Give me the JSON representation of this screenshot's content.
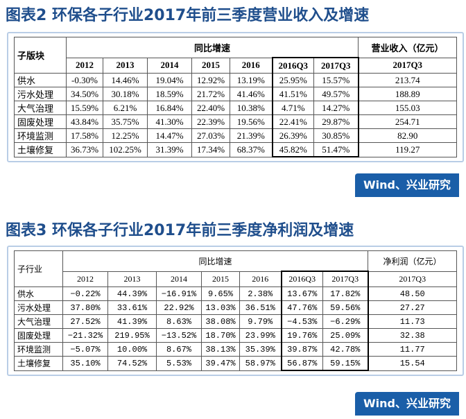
{
  "figures": [
    {
      "title": "图表2 环保各子行业2017年前三季度营业收入及增速",
      "header": {
        "segment": "子版块",
        "growth": "同比增速",
        "metric": "营业收入（亿元）"
      },
      "columns": [
        "2012",
        "2013",
        "2014",
        "2015",
        "2016",
        "2016Q3",
        "2017Q3",
        "2017Q3"
      ],
      "rows": [
        [
          "供水",
          "-0.30%",
          "14.46%",
          "19.04%",
          "12.92%",
          "13.19%",
          "25.95%",
          "15.57%",
          "213.74"
        ],
        [
          "污水处理",
          "34.50%",
          "30.18%",
          "18.59%",
          "21.72%",
          "41.46%",
          "41.51%",
          "49.57%",
          "188.89"
        ],
        [
          "大气治理",
          "15.59%",
          "6.21%",
          "16.84%",
          "22.40%",
          "10.38%",
          "4.71%",
          "14.27%",
          "155.03"
        ],
        [
          "固废处理",
          "43.84%",
          "35.75%",
          "41.30%",
          "22.39%",
          "19.56%",
          "22.41%",
          "29.87%",
          "254.71"
        ],
        [
          "环境监测",
          "17.58%",
          "12.25%",
          "14.47%",
          "27.03%",
          "21.39%",
          "26.39%",
          "30.85%",
          "82.90"
        ],
        [
          "土壤修复",
          "36.73%",
          "102.25%",
          "31.39%",
          "17.34%",
          "68.37%",
          "45.82%",
          "51.47%",
          "119.27"
        ]
      ],
      "source": "Wind、兴业研究"
    },
    {
      "title": "图表3 环保各子行业2017年前三季度净利润及增速",
      "header": {
        "segment": "子行业",
        "growth": "同比增速",
        "metric": "净利润（亿元）"
      },
      "columns": [
        "2012",
        "2013",
        "2014",
        "2015",
        "2016",
        "2016Q3",
        "2017Q3",
        "2017Q3"
      ],
      "rows": [
        [
          "供水",
          "−0.22%",
          "44.39%",
          "−16.91%",
          "9.65%",
          "2.38%",
          "13.67%",
          "17.82%",
          "48.50"
        ],
        [
          "污水处理",
          "37.80%",
          "33.61%",
          "22.92%",
          "13.03%",
          "36.51%",
          "47.76%",
          "59.56%",
          "27.27"
        ],
        [
          "大气治理",
          "27.52%",
          "41.39%",
          "8.63%",
          "38.08%",
          "9.79%",
          "−4.53%",
          "−6.29%",
          "11.73"
        ],
        [
          "固废处理",
          "−21.32%",
          "219.95%",
          "−13.52%",
          "18.70%",
          "23.99%",
          "19.76%",
          "25.09%",
          "32.38"
        ],
        [
          "环境监测",
          "−5.07%",
          "10.00%",
          "8.67%",
          "38.13%",
          "35.39%",
          "39.87%",
          "42.78%",
          "11.77"
        ],
        [
          "土壤修复",
          "35.10%",
          "74.52%",
          "5.53%",
          "39.47%",
          "58.97%",
          "56.87%",
          "59.15%",
          "15.54"
        ]
      ],
      "source": "Wind、兴业研究"
    }
  ]
}
